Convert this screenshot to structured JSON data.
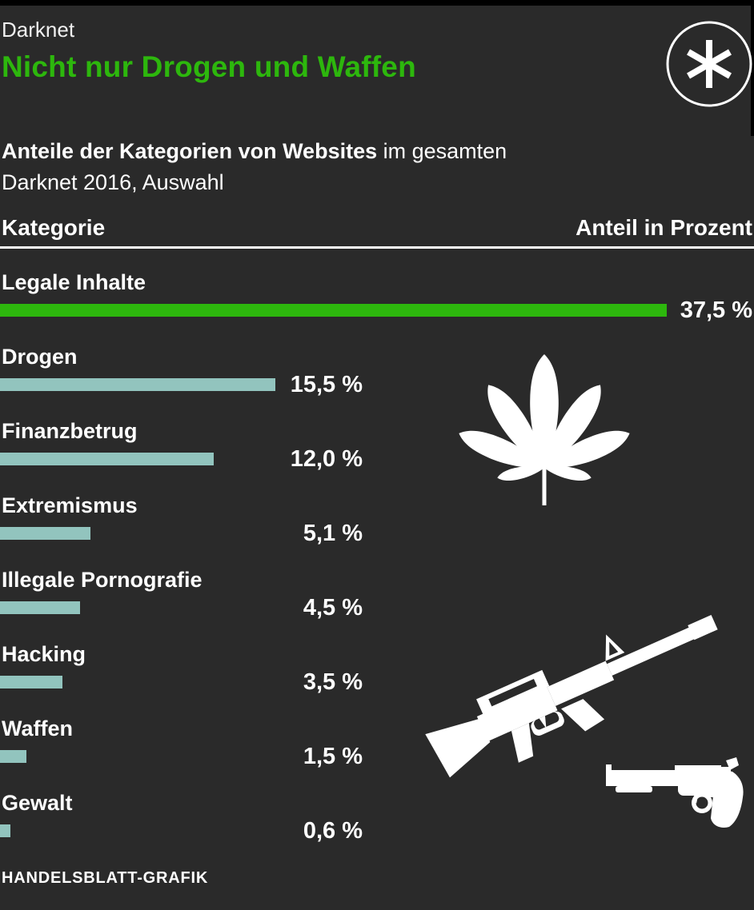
{
  "header": {
    "kicker": "Darknet",
    "title": "Nicht nur Drogen und Waffen"
  },
  "subtitle": {
    "bold": "Anteile der Kategorien von Websites",
    "rest": " im gesamten",
    "line2": "Darknet 2016, Auswahl"
  },
  "table_header": {
    "left": "Kategorie",
    "right": "Anteil in Prozent"
  },
  "chart_data": {
    "type": "bar",
    "orientation": "horizontal",
    "title": "Nicht nur Drogen und Waffen",
    "subtitle": "Anteile der Kategorien von Websites im gesamten Darknet 2016, Auswahl",
    "categories": [
      "Legale Inhalte",
      "Drogen",
      "Finanzbetrug",
      "Extremismus",
      "Illegale Pornografie",
      "Hacking",
      "Waffen",
      "Gewalt"
    ],
    "values": [
      37.5,
      15.5,
      12.0,
      5.1,
      4.5,
      3.5,
      1.5,
      0.6
    ],
    "value_labels": [
      "37,5 %",
      "15,5 %",
      "12,0 %",
      "5,1 %",
      "4,5 %",
      "3,5 %",
      "1,5 %",
      "0,6 %"
    ],
    "unit": "Prozent",
    "xlim": [
      0,
      37.5
    ],
    "grid": false,
    "legend": false,
    "highlight_index": 0,
    "bar_color_highlight": "#2db70d",
    "bar_color_default": "#92c4be"
  },
  "icons": {
    "asterisk": "asterisk-in-circle",
    "drugs": "cannabis-leaf",
    "rifle": "assault-rifle",
    "pistol": "revolver"
  },
  "colors": {
    "background": "#2a2a2a",
    "top_bar": "#000000",
    "text": "#ffffff",
    "accent_green": "#2db70d",
    "bar_teal": "#92c4be"
  },
  "footer": {
    "credit": "HANDELSBLATT-GRAFIK"
  }
}
